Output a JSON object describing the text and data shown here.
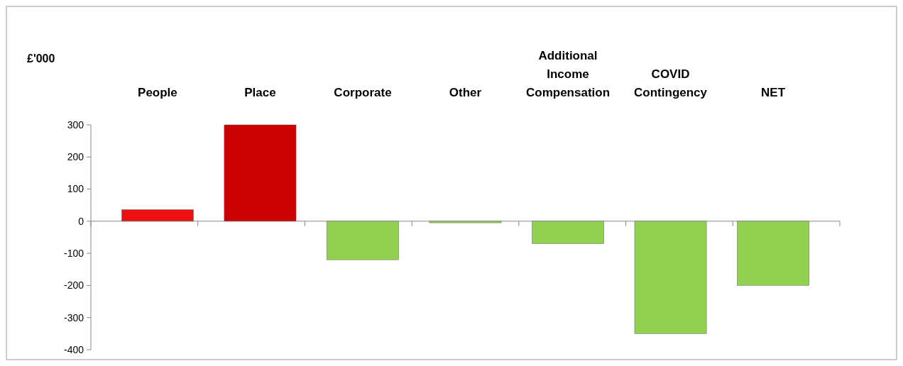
{
  "chart_data": {
    "type": "bar",
    "ylabel": "£'000",
    "categories": [
      "People",
      "Place",
      "Corporate",
      "Other",
      "Additional Income Compensation",
      "COVID Contingency",
      "NET"
    ],
    "values": [
      36,
      300,
      -120,
      -5,
      -70,
      -350,
      -200
    ],
    "colors": [
      "#ee1111",
      "#cc0000",
      "#92d050",
      "#92d050",
      "#92d050",
      "#92d050",
      "#92d050"
    ],
    "ylim": [
      -400,
      300
    ],
    "yticks": [
      -400,
      -300,
      -200,
      -100,
      0,
      100,
      200,
      300
    ]
  }
}
